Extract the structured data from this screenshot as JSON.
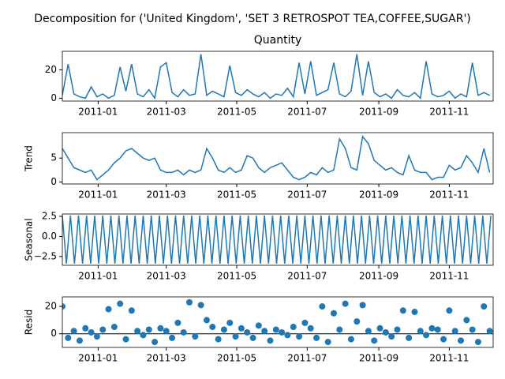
{
  "title": "Decomposition for ('United Kingdom', 'SET 3 RETROSPOT TEA,COFFEE,SUGAR')",
  "chart_data": [
    {
      "type": "line",
      "title": "Quantity",
      "color": "#1f77b4",
      "x": [
        0,
        5,
        10,
        15,
        20,
        25,
        30,
        35,
        40,
        45,
        50,
        55,
        60,
        65,
        70,
        75,
        80,
        85,
        90,
        95,
        100,
        105,
        110,
        115,
        120,
        125,
        130,
        135,
        140,
        145,
        150,
        155,
        160,
        165,
        170,
        175,
        180,
        185,
        190,
        195,
        200,
        205,
        210,
        215,
        220,
        225,
        230,
        235,
        240,
        245,
        250,
        255,
        260,
        265,
        270,
        275,
        280,
        285,
        290,
        295,
        300,
        305,
        310,
        315,
        320,
        325,
        330,
        335,
        340,
        345,
        350,
        355,
        360,
        365,
        370
      ],
      "values": [
        2,
        24,
        3,
        1,
        0,
        8,
        1,
        3,
        0,
        2,
        22,
        5,
        24,
        3,
        1,
        6,
        0,
        22,
        25,
        4,
        1,
        6,
        2,
        3,
        31,
        2,
        5,
        3,
        1,
        23,
        4,
        2,
        6,
        3,
        1,
        4,
        0,
        3,
        2,
        7,
        1,
        25,
        3,
        26,
        2,
        4,
        6,
        25,
        3,
        1,
        5,
        31,
        2,
        26,
        4,
        1,
        3,
        0,
        6,
        2,
        1,
        4,
        0,
        26,
        3,
        1,
        2,
        5,
        0,
        3,
        1,
        25,
        2,
        4,
        2
      ],
      "xlim": [
        0,
        373
      ],
      "xticks": [
        {
          "value": 31,
          "label": "2011-01"
        },
        {
          "value": 90,
          "label": "2011-03"
        },
        {
          "value": 151,
          "label": "2011-05"
        },
        {
          "value": 212,
          "label": "2011-07"
        },
        {
          "value": 274,
          "label": "2011-09"
        },
        {
          "value": 335,
          "label": "2011-11"
        }
      ],
      "ylim": [
        -2,
        33
      ],
      "yticks": [
        0,
        20
      ]
    },
    {
      "type": "line",
      "ylabel": "Trend",
      "color": "#1f77b4",
      "x": [
        0,
        5,
        10,
        15,
        20,
        25,
        30,
        35,
        40,
        45,
        50,
        55,
        60,
        65,
        70,
        75,
        80,
        85,
        90,
        95,
        100,
        105,
        110,
        115,
        120,
        125,
        130,
        135,
        140,
        145,
        150,
        155,
        160,
        165,
        170,
        175,
        180,
        185,
        190,
        195,
        200,
        205,
        210,
        215,
        220,
        225,
        230,
        235,
        240,
        245,
        250,
        255,
        260,
        265,
        270,
        275,
        280,
        285,
        290,
        295,
        300,
        305,
        310,
        315,
        320,
        325,
        330,
        335,
        340,
        345,
        350,
        355,
        360,
        365,
        370
      ],
      "values": [
        7,
        5,
        3,
        2.5,
        2,
        2.5,
        0.5,
        1.5,
        2.5,
        4,
        5,
        6.5,
        7,
        6,
        5,
        4.5,
        5,
        2.5,
        2,
        2,
        2.5,
        1.5,
        2.5,
        2,
        2.5,
        7,
        5,
        2.5,
        2,
        3,
        2,
        2.5,
        5.5,
        5,
        3,
        2,
        3,
        3.5,
        4,
        2.5,
        1,
        0.5,
        1,
        2,
        1.5,
        3,
        2,
        2.5,
        9,
        7,
        3,
        2.5,
        9.5,
        8,
        4.5,
        3.5,
        2.5,
        3,
        2,
        1.5,
        5.5,
        2.5,
        2,
        2,
        0.5,
        1,
        1,
        3.5,
        2.5,
        3,
        5.5,
        4,
        2,
        7,
        2
      ],
      "xlim": [
        0,
        373
      ],
      "xticks": [
        {
          "value": 31,
          "label": "2011-01"
        },
        {
          "value": 90,
          "label": "2011-03"
        },
        {
          "value": 151,
          "label": "2011-05"
        },
        {
          "value": 212,
          "label": "2011-07"
        },
        {
          "value": 274,
          "label": "2011-09"
        },
        {
          "value": 335,
          "label": "2011-11"
        }
      ],
      "ylim": [
        -0.4,
        10.3
      ],
      "yticks": [
        0,
        5
      ]
    },
    {
      "type": "line",
      "ylabel": "Seasonal",
      "color": "#1f77b4",
      "x": [
        0,
        3.5,
        7,
        10.5,
        14,
        17.5,
        21,
        24.5,
        28,
        31.5,
        35,
        38.5,
        42,
        45.5,
        49,
        52.5,
        56,
        59.5,
        63,
        66.5,
        70,
        73.5,
        77,
        80.5,
        84,
        87.5,
        91,
        94.5,
        98,
        101.5,
        105,
        108.5,
        112,
        115.5,
        119,
        122.5,
        126,
        129.5,
        133,
        136.5,
        140,
        143.5,
        147,
        150.5,
        154,
        157.5,
        161,
        164.5,
        168,
        171.5,
        175,
        178.5,
        182,
        185.5,
        189,
        192.5,
        196,
        199.5,
        203,
        206.5,
        210,
        213.5,
        217,
        220.5,
        224,
        227.5,
        231,
        234.5,
        238,
        241.5,
        245,
        248.5,
        252,
        255.5,
        259,
        262.5,
        266,
        269.5,
        273,
        276.5,
        280,
        283.5,
        287,
        290.5,
        294,
        297.5,
        301,
        304.5,
        308,
        311.5,
        315,
        318.5,
        322,
        325.5,
        329,
        332.5,
        336,
        339.5,
        343,
        346.5,
        350,
        353.5,
        357,
        360.5,
        364,
        367.5,
        371
      ],
      "values": [
        2.6,
        -3.4,
        2.6,
        -3.4,
        2.6,
        -3.4,
        2.6,
        -3.4,
        2.6,
        -3.4,
        2.6,
        -3.4,
        2.6,
        -3.4,
        2.6,
        -3.4,
        2.6,
        -3.4,
        2.6,
        -3.4,
        2.6,
        -3.4,
        2.6,
        -3.4,
        2.6,
        -3.4,
        2.6,
        -3.4,
        2.6,
        -3.4,
        2.6,
        -3.4,
        2.6,
        -3.4,
        2.6,
        -3.4,
        2.6,
        -3.4,
        2.6,
        -3.4,
        2.6,
        -3.4,
        2.6,
        -3.4,
        2.6,
        -3.4,
        2.6,
        -3.4,
        2.6,
        -3.4,
        2.6,
        -3.4,
        2.6,
        -3.4,
        2.6,
        -3.4,
        2.6,
        -3.4,
        2.6,
        -3.4,
        2.6,
        -3.4,
        2.6,
        -3.4,
        2.6,
        -3.4,
        2.6,
        -3.4,
        2.6,
        -3.4,
        2.6,
        -3.4,
        2.6,
        -3.4,
        2.6,
        -3.4,
        2.6,
        -3.4,
        2.6,
        -3.4,
        2.6,
        -3.4,
        2.6,
        -3.4,
        2.6,
        -3.4,
        2.6,
        -3.4,
        2.6,
        -3.4,
        2.6,
        -3.4,
        2.6,
        -3.4,
        2.6,
        -3.4,
        2.6,
        -3.4,
        2.6,
        -3.4,
        2.6,
        -3.4,
        2.6,
        -3.4,
        2.6,
        -3.4,
        2.6
      ],
      "xlim": [
        0,
        373
      ],
      "xticks": [
        {
          "value": 31,
          "label": "2011-01"
        },
        {
          "value": 90,
          "label": "2011-03"
        },
        {
          "value": 151,
          "label": "2011-05"
        },
        {
          "value": 212,
          "label": "2011-07"
        },
        {
          "value": 274,
          "label": "2011-09"
        },
        {
          "value": 335,
          "label": "2011-11"
        }
      ],
      "ylim": [
        -3.6,
        2.8
      ],
      "yticks": [
        {
          "value": -2.5,
          "label": "−2.5"
        },
        {
          "value": 0,
          "label": "0.0"
        },
        {
          "value": 2.5,
          "label": "2.5"
        }
      ]
    },
    {
      "type": "scatter",
      "ylabel": "Resid",
      "color": "#1f77b4",
      "x": [
        0,
        5,
        10,
        15,
        20,
        25,
        30,
        35,
        40,
        45,
        50,
        55,
        60,
        65,
        70,
        75,
        80,
        85,
        90,
        95,
        100,
        105,
        110,
        115,
        120,
        125,
        130,
        135,
        140,
        145,
        150,
        155,
        160,
        165,
        170,
        175,
        180,
        185,
        190,
        195,
        200,
        205,
        210,
        215,
        220,
        225,
        230,
        235,
        240,
        245,
        250,
        255,
        260,
        265,
        270,
        275,
        280,
        285,
        290,
        295,
        300,
        305,
        310,
        315,
        320,
        325,
        330,
        335,
        340,
        345,
        350,
        355,
        360,
        365,
        370
      ],
      "values": [
        20,
        -3,
        2,
        -5,
        4,
        1,
        -2,
        3,
        18,
        5,
        22,
        -4,
        17,
        2,
        -1,
        3,
        -6,
        4,
        2,
        -3,
        8,
        1,
        23,
        -2,
        21,
        10,
        5,
        -4,
        3,
        8,
        -2,
        4,
        1,
        -3,
        6,
        2,
        -5,
        3,
        1,
        -1,
        5,
        -2,
        8,
        4,
        -3,
        20,
        -6,
        15,
        3,
        22,
        -4,
        9,
        21,
        2,
        -5,
        4,
        1,
        -2,
        3,
        17,
        -3,
        16,
        2,
        -1,
        4,
        3,
        -4,
        17,
        2,
        -5,
        10,
        3,
        -6,
        20,
        2
      ],
      "xlim": [
        0,
        373
      ],
      "xticks": [
        {
          "value": 31,
          "label": "2011-01"
        },
        {
          "value": 90,
          "label": "2011-03"
        },
        {
          "value": 151,
          "label": "2011-05"
        },
        {
          "value": 212,
          "label": "2011-07"
        },
        {
          "value": 274,
          "label": "2011-09"
        },
        {
          "value": 335,
          "label": "2011-11"
        }
      ],
      "ylim": [
        -10,
        27
      ],
      "yticks": [
        0,
        20
      ]
    }
  ]
}
